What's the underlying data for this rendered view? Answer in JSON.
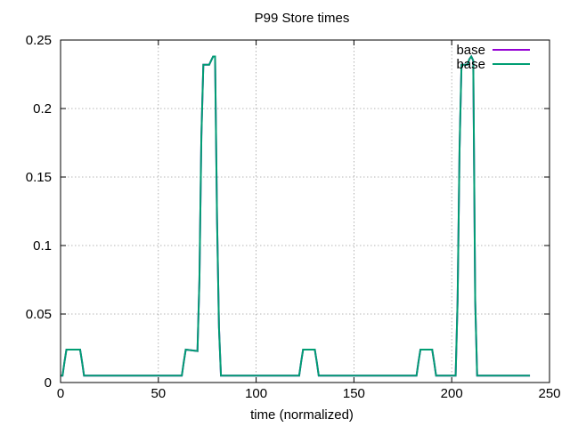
{
  "chart_data": {
    "type": "line",
    "title": "P99 Store times",
    "xlabel": "time (normalized)",
    "ylabel": "",
    "xlim": [
      0,
      250
    ],
    "ylim": [
      0,
      0.25
    ],
    "xticks": [
      0,
      50,
      100,
      150,
      200,
      250
    ],
    "yticks": [
      0,
      0.05,
      0.1,
      0.15,
      0.2,
      0.25
    ],
    "xtick_labels": [
      "0",
      "50",
      "100",
      "150",
      "200",
      "250"
    ],
    "ytick_labels": [
      "0",
      "0.05",
      "0.1",
      "0.15",
      "0.2",
      "0.25"
    ],
    "grid": true,
    "legend_position": "top-right",
    "series": [
      {
        "name": "base",
        "color": "#9400d3",
        "x": [
          0,
          1,
          2,
          3,
          10,
          11,
          12,
          62,
          63,
          64,
          70,
          71,
          72,
          73,
          76,
          77,
          78,
          79,
          80,
          81,
          82,
          122,
          123,
          124,
          130,
          131,
          132,
          182,
          183,
          184,
          190,
          191,
          192,
          202,
          203,
          204,
          205,
          208,
          209,
          210,
          211,
          212,
          213,
          240
        ],
        "y": [
          0.005,
          0.005,
          0.015,
          0.024,
          0.024,
          0.015,
          0.005,
          0.005,
          0.015,
          0.024,
          0.023,
          0.075,
          0.18,
          0.232,
          0.232,
          0.235,
          0.238,
          0.238,
          0.12,
          0.04,
          0.005,
          0.005,
          0.015,
          0.024,
          0.024,
          0.015,
          0.005,
          0.005,
          0.015,
          0.024,
          0.024,
          0.015,
          0.005,
          0.005,
          0.06,
          0.17,
          0.232,
          0.232,
          0.236,
          0.238,
          0.235,
          0.06,
          0.005,
          0.005
        ]
      },
      {
        "name": "base",
        "color": "#009e73",
        "x": [
          0,
          1,
          2,
          3,
          10,
          11,
          12,
          62,
          63,
          64,
          70,
          71,
          72,
          73,
          76,
          77,
          78,
          79,
          80,
          81,
          82,
          122,
          123,
          124,
          130,
          131,
          132,
          182,
          183,
          184,
          190,
          191,
          192,
          202,
          203,
          204,
          205,
          208,
          209,
          210,
          211,
          212,
          213,
          240
        ],
        "y": [
          0.005,
          0.005,
          0.015,
          0.024,
          0.024,
          0.015,
          0.005,
          0.005,
          0.015,
          0.024,
          0.023,
          0.075,
          0.18,
          0.232,
          0.232,
          0.235,
          0.238,
          0.238,
          0.12,
          0.04,
          0.005,
          0.005,
          0.015,
          0.024,
          0.024,
          0.015,
          0.005,
          0.005,
          0.015,
          0.024,
          0.024,
          0.015,
          0.005,
          0.005,
          0.06,
          0.17,
          0.232,
          0.232,
          0.236,
          0.238,
          0.235,
          0.06,
          0.005,
          0.005
        ]
      }
    ]
  }
}
